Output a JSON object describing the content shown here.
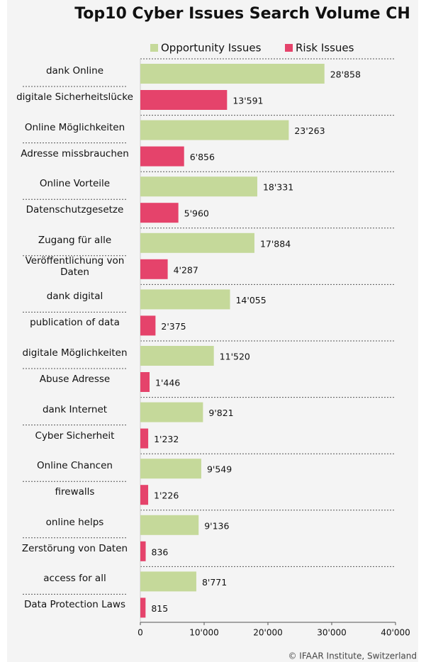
{
  "chart_data": {
    "type": "bar",
    "orientation": "horizontal",
    "title": "Top10 Cyber Issues Search Volume CH",
    "source": "© IFAAR Institute, Switzerland",
    "categories": [
      "dank Online",
      "digitale Sicherheitslücke",
      "Online Möglichkeiten",
      "Adresse missbrauchen",
      "Online Vorteile",
      "Datenschutzgesetze",
      "Zugang für alle",
      "Veröffentlichung von Daten",
      "dank digital",
      "publication of data",
      "digitale Möglichkeiten",
      "Abuse Adresse",
      "dank Internet",
      "Cyber Sicherheit",
      "Online Chancen",
      "firewalls",
      "online helps",
      "Zerstörung von Daten",
      "access for all",
      "Data Protection Laws"
    ],
    "series": [
      {
        "name": "Opportunity Issues",
        "color": "#c5d99a",
        "values": [
          28858,
          null,
          23263,
          null,
          18331,
          null,
          17884,
          null,
          14055,
          null,
          11520,
          null,
          9821,
          null,
          9549,
          null,
          9136,
          null,
          8771,
          null
        ],
        "value_labels": [
          "28'858",
          null,
          "23'263",
          null,
          "18'331",
          null,
          "17'884",
          null,
          "14'055",
          null,
          "11'520",
          null,
          "9'821",
          null,
          "9'549",
          null,
          "9'136",
          null,
          "8'771",
          null
        ]
      },
      {
        "name": "Risk Issues",
        "color": "#e5436b",
        "values": [
          null,
          13591,
          null,
          6856,
          null,
          5960,
          null,
          4287,
          null,
          2375,
          null,
          1446,
          null,
          1232,
          null,
          1226,
          null,
          836,
          null,
          815
        ],
        "value_labels": [
          null,
          "13'591",
          null,
          "6'856",
          null,
          "5'960",
          null,
          "4'287",
          null,
          "2'375",
          null,
          "1'446",
          null,
          "1'232",
          null,
          "1'226",
          null,
          "836",
          null,
          "815"
        ]
      }
    ],
    "xlim": [
      0,
      40000
    ],
    "xticks": [
      0,
      {
        "value": 10000,
        "label": "10'000"
      },
      {
        "value": 20000,
        "label": "20'000"
      },
      {
        "value": 30000,
        "label": "30'000"
      },
      {
        "value": 40000,
        "label": "40'000"
      }
    ],
    "legend": "top"
  }
}
